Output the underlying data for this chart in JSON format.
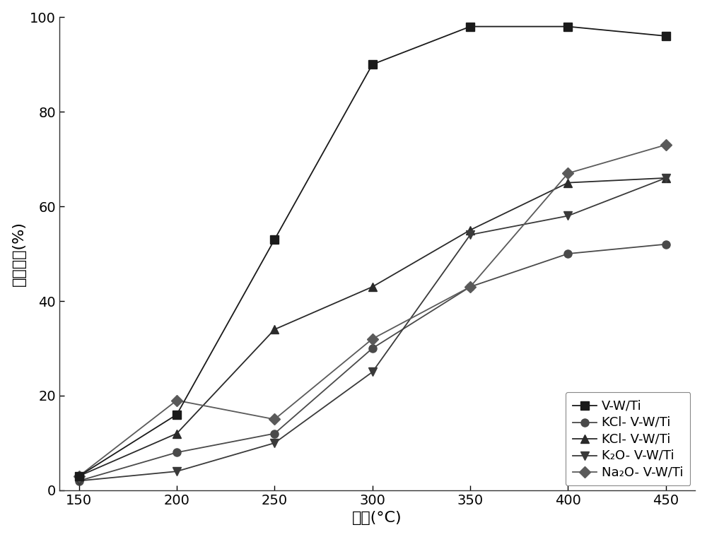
{
  "x": [
    150,
    200,
    250,
    300,
    350,
    400,
    450
  ],
  "series": [
    {
      "label": "V-W/Ti",
      "values": [
        3,
        16,
        53,
        90,
        98,
        98,
        96
      ],
      "marker": "s",
      "color": "#1a1a1a",
      "markersize": 8,
      "zorder": 5
    },
    {
      "label": "KCl- V-W/Ti",
      "values": [
        2,
        8,
        12,
        30,
        43,
        50,
        52
      ],
      "marker": "o",
      "color": "#4a4a4a",
      "markersize": 8,
      "zorder": 4
    },
    {
      "label": "KCl- V-W/Ti",
      "values": [
        3,
        12,
        34,
        43,
        55,
        65,
        66
      ],
      "marker": "^",
      "color": "#2a2a2a",
      "markersize": 8,
      "zorder": 4
    },
    {
      "label": "K₂O- V-W/Ti",
      "values": [
        2,
        4,
        10,
        25,
        54,
        58,
        66
      ],
      "marker": "v",
      "color": "#3a3a3a",
      "markersize": 8,
      "zorder": 4
    },
    {
      "label": "Na₂O- V-W/Ti",
      "values": [
        3,
        19,
        15,
        32,
        43,
        67,
        73
      ],
      "marker": "D",
      "color": "#5a5a5a",
      "markersize": 8,
      "zorder": 4
    }
  ],
  "xlabel": "温度(°C)",
  "ylabel": "脱础效率(%)",
  "xlim": [
    140,
    465
  ],
  "ylim": [
    0,
    100
  ],
  "xticks": [
    150,
    200,
    250,
    300,
    350,
    400,
    450
  ],
  "yticks": [
    0,
    20,
    40,
    60,
    80,
    100
  ],
  "background_color": "#ffffff",
  "linewidth": 1.3,
  "legend_loc": "lower right",
  "legend_fontsize": 13,
  "tick_labelsize": 14,
  "xlabel_fontsize": 16,
  "ylabel_fontsize": 16
}
